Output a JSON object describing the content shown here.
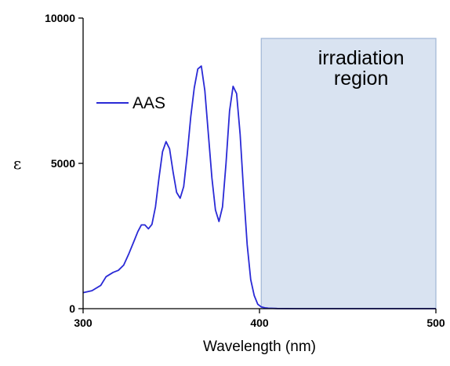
{
  "chart_data": {
    "type": "line",
    "xlabel": "Wavelength (nm)",
    "ylabel": "ε",
    "xlim": [
      300,
      500
    ],
    "ylim": [
      0,
      10000
    ],
    "x_ticks": [
      300,
      400,
      500
    ],
    "y_ticks": [
      0,
      5000,
      10000
    ],
    "grid": false,
    "legend": {
      "position": "top-left",
      "entries": [
        "AAS"
      ]
    },
    "series": [
      {
        "name": "AAS",
        "color": "#2a2ad6",
        "x": [
          300,
          305,
          310,
          313,
          317,
          320,
          323,
          326,
          329,
          331,
          333,
          335,
          337,
          339,
          341,
          343,
          345,
          347,
          349,
          351,
          353,
          355,
          357,
          359,
          361,
          363,
          365,
          367,
          369,
          371,
          373,
          375,
          377,
          379,
          381,
          383,
          385,
          387,
          389,
          391,
          393,
          395,
          397,
          399,
          401,
          403,
          405,
          410,
          420,
          440,
          470,
          500
        ],
        "y": [
          550,
          620,
          800,
          1100,
          1250,
          1320,
          1500,
          1900,
          2350,
          2650,
          2880,
          2880,
          2750,
          2900,
          3500,
          4500,
          5400,
          5750,
          5500,
          4700,
          4000,
          3800,
          4200,
          5300,
          6600,
          7600,
          8250,
          8350,
          7500,
          6000,
          4500,
          3400,
          3000,
          3500,
          5000,
          6800,
          7650,
          7400,
          6000,
          4000,
          2200,
          1000,
          450,
          150,
          60,
          30,
          15,
          5,
          0,
          0,
          0,
          0
        ]
      }
    ],
    "annotations": [
      {
        "text_lines": [
          "irradiation",
          "region"
        ],
        "x_range": [
          401,
          500
        ],
        "y_top": 9300,
        "fill": "#d9e3f1",
        "stroke": "#9fb6d6"
      }
    ]
  }
}
